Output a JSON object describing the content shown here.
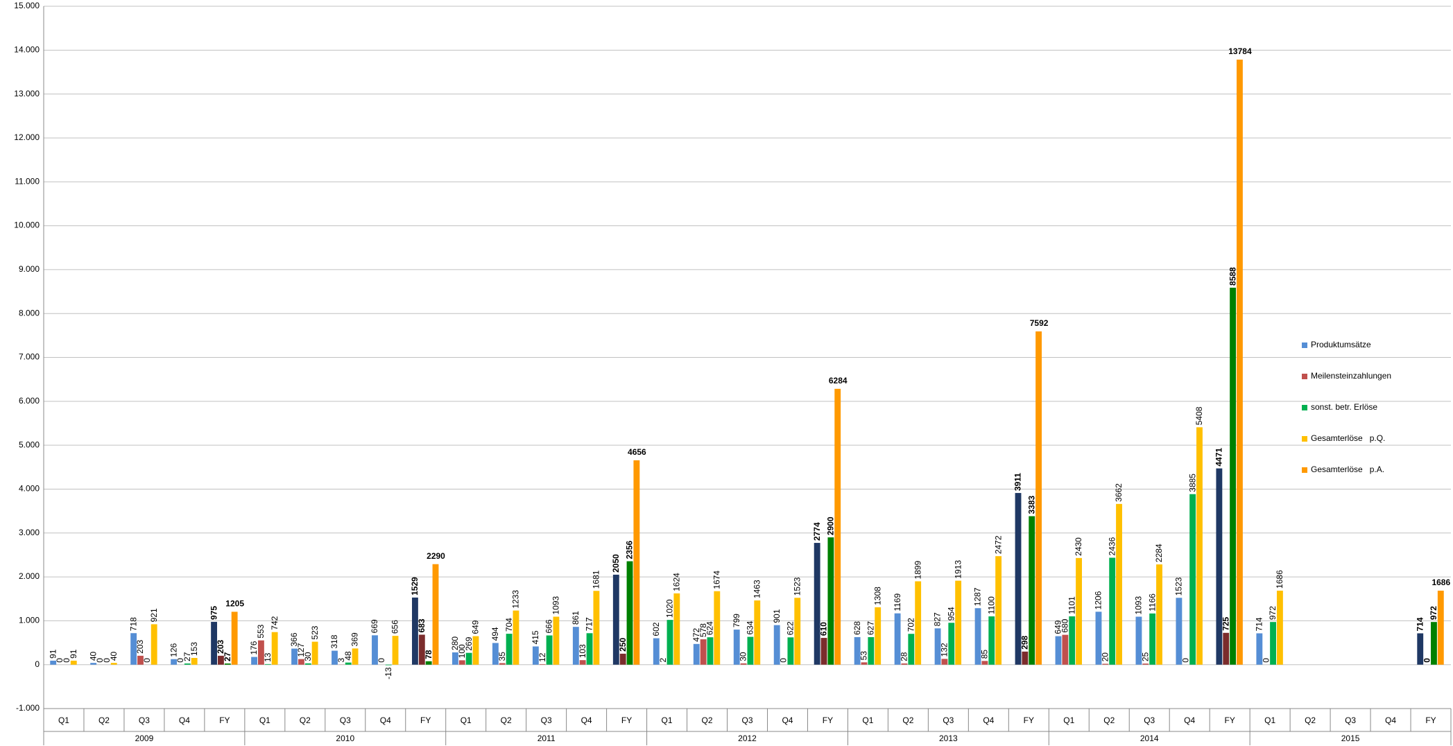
{
  "chart_data": {
    "type": "bar",
    "categories": [
      "Q1",
      "Q2",
      "Q3",
      "Q4",
      "FY",
      "Q1",
      "Q2",
      "Q3",
      "Q4",
      "FY",
      "Q1",
      "Q2",
      "Q3",
      "Q4",
      "FY",
      "Q1",
      "Q2",
      "Q3",
      "Q4",
      "FY",
      "Q1",
      "Q2",
      "Q3",
      "Q4",
      "FY",
      "Q1",
      "Q2",
      "Q3",
      "Q4",
      "FY",
      "Q1",
      "Q2",
      "Q3",
      "Q4",
      "FY"
    ],
    "groups": [
      "2009",
      "2010",
      "2011",
      "2012",
      "2013",
      "2014",
      "2015"
    ],
    "series": [
      {
        "name": "Produktumsätze",
        "color": "#558ed5",
        "fy_color": "#1f3864",
        "values": [
          91,
          40,
          718,
          126,
          975,
          176,
          366,
          318,
          669,
          1529,
          280,
          494,
          415,
          861,
          2050,
          602,
          472,
          799,
          901,
          2774,
          628,
          1169,
          827,
          1287,
          3911,
          649,
          1206,
          1093,
          1523,
          4471,
          714,
          null,
          null,
          null,
          714
        ]
      },
      {
        "name": "Meilensteinzahlungen",
        "color": "#c0504d",
        "fy_color": "#7b2c2c",
        "values": [
          0,
          0,
          203,
          0,
          203,
          553,
          127,
          3,
          0,
          683,
          100,
          35,
          12,
          103,
          250,
          2,
          578,
          30,
          0,
          610,
          53,
          28,
          132,
          85,
          298,
          680,
          20,
          25,
          0,
          725,
          0,
          null,
          null,
          null,
          0
        ]
      },
      {
        "name": "sonst. betr. Erlöse",
        "color": "#00b050",
        "fy_color": "#008000",
        "values": [
          0,
          0,
          0,
          27,
          27,
          13,
          30,
          48,
          -13,
          78,
          269,
          704,
          666,
          717,
          2356,
          1020,
          624,
          634,
          622,
          2900,
          627,
          702,
          954,
          1100,
          3383,
          1101,
          2436,
          1166,
          3885,
          8588,
          972,
          null,
          null,
          null,
          972
        ]
      },
      {
        "name": "Gesamterlöse   p.Q.",
        "color": "#ffc000",
        "values": [
          91,
          40,
          921,
          153,
          null,
          742,
          523,
          369,
          656,
          null,
          649,
          1233,
          1093,
          1681,
          null,
          1624,
          1674,
          1463,
          1523,
          null,
          1308,
          1899,
          1913,
          2472,
          null,
          2430,
          3662,
          2284,
          5408,
          null,
          1686,
          null,
          null,
          null,
          null
        ]
      },
      {
        "name": "Gesamterlöse   p.A.",
        "color": "#ff9900",
        "values": [
          null,
          null,
          null,
          null,
          1205,
          null,
          null,
          null,
          null,
          2290,
          null,
          null,
          null,
          null,
          4656,
          null,
          null,
          null,
          null,
          6284,
          null,
          null,
          null,
          null,
          7592,
          null,
          null,
          null,
          null,
          13784,
          null,
          null,
          null,
          null,
          1686
        ]
      }
    ],
    "ylim": [
      -1000,
      15000
    ],
    "yticks": [
      {
        "value": -1000,
        "label": "-1.000"
      },
      0,
      {
        "value": 1000,
        "label": "1.000"
      },
      {
        "value": 2000,
        "label": "2.000"
      },
      {
        "value": 3000,
        "label": "3.000"
      },
      {
        "value": 4000,
        "label": "4.000"
      },
      {
        "value": 5000,
        "label": "5.000"
      },
      {
        "value": 6000,
        "label": "6.000"
      },
      {
        "value": 7000,
        "label": "7.000"
      },
      {
        "value": 8000,
        "label": "8.000"
      },
      {
        "value": 9000,
        "label": "9.000"
      },
      {
        "value": 10000,
        "label": "10.000"
      },
      {
        "value": 11000,
        "label": "11.000"
      },
      {
        "value": 12000,
        "label": "12.000"
      },
      {
        "value": 13000,
        "label": "13.000"
      },
      {
        "value": 14000,
        "label": "14.000"
      },
      {
        "value": 15000,
        "label": "15.000"
      }
    ],
    "grid": true,
    "legend": "right"
  }
}
